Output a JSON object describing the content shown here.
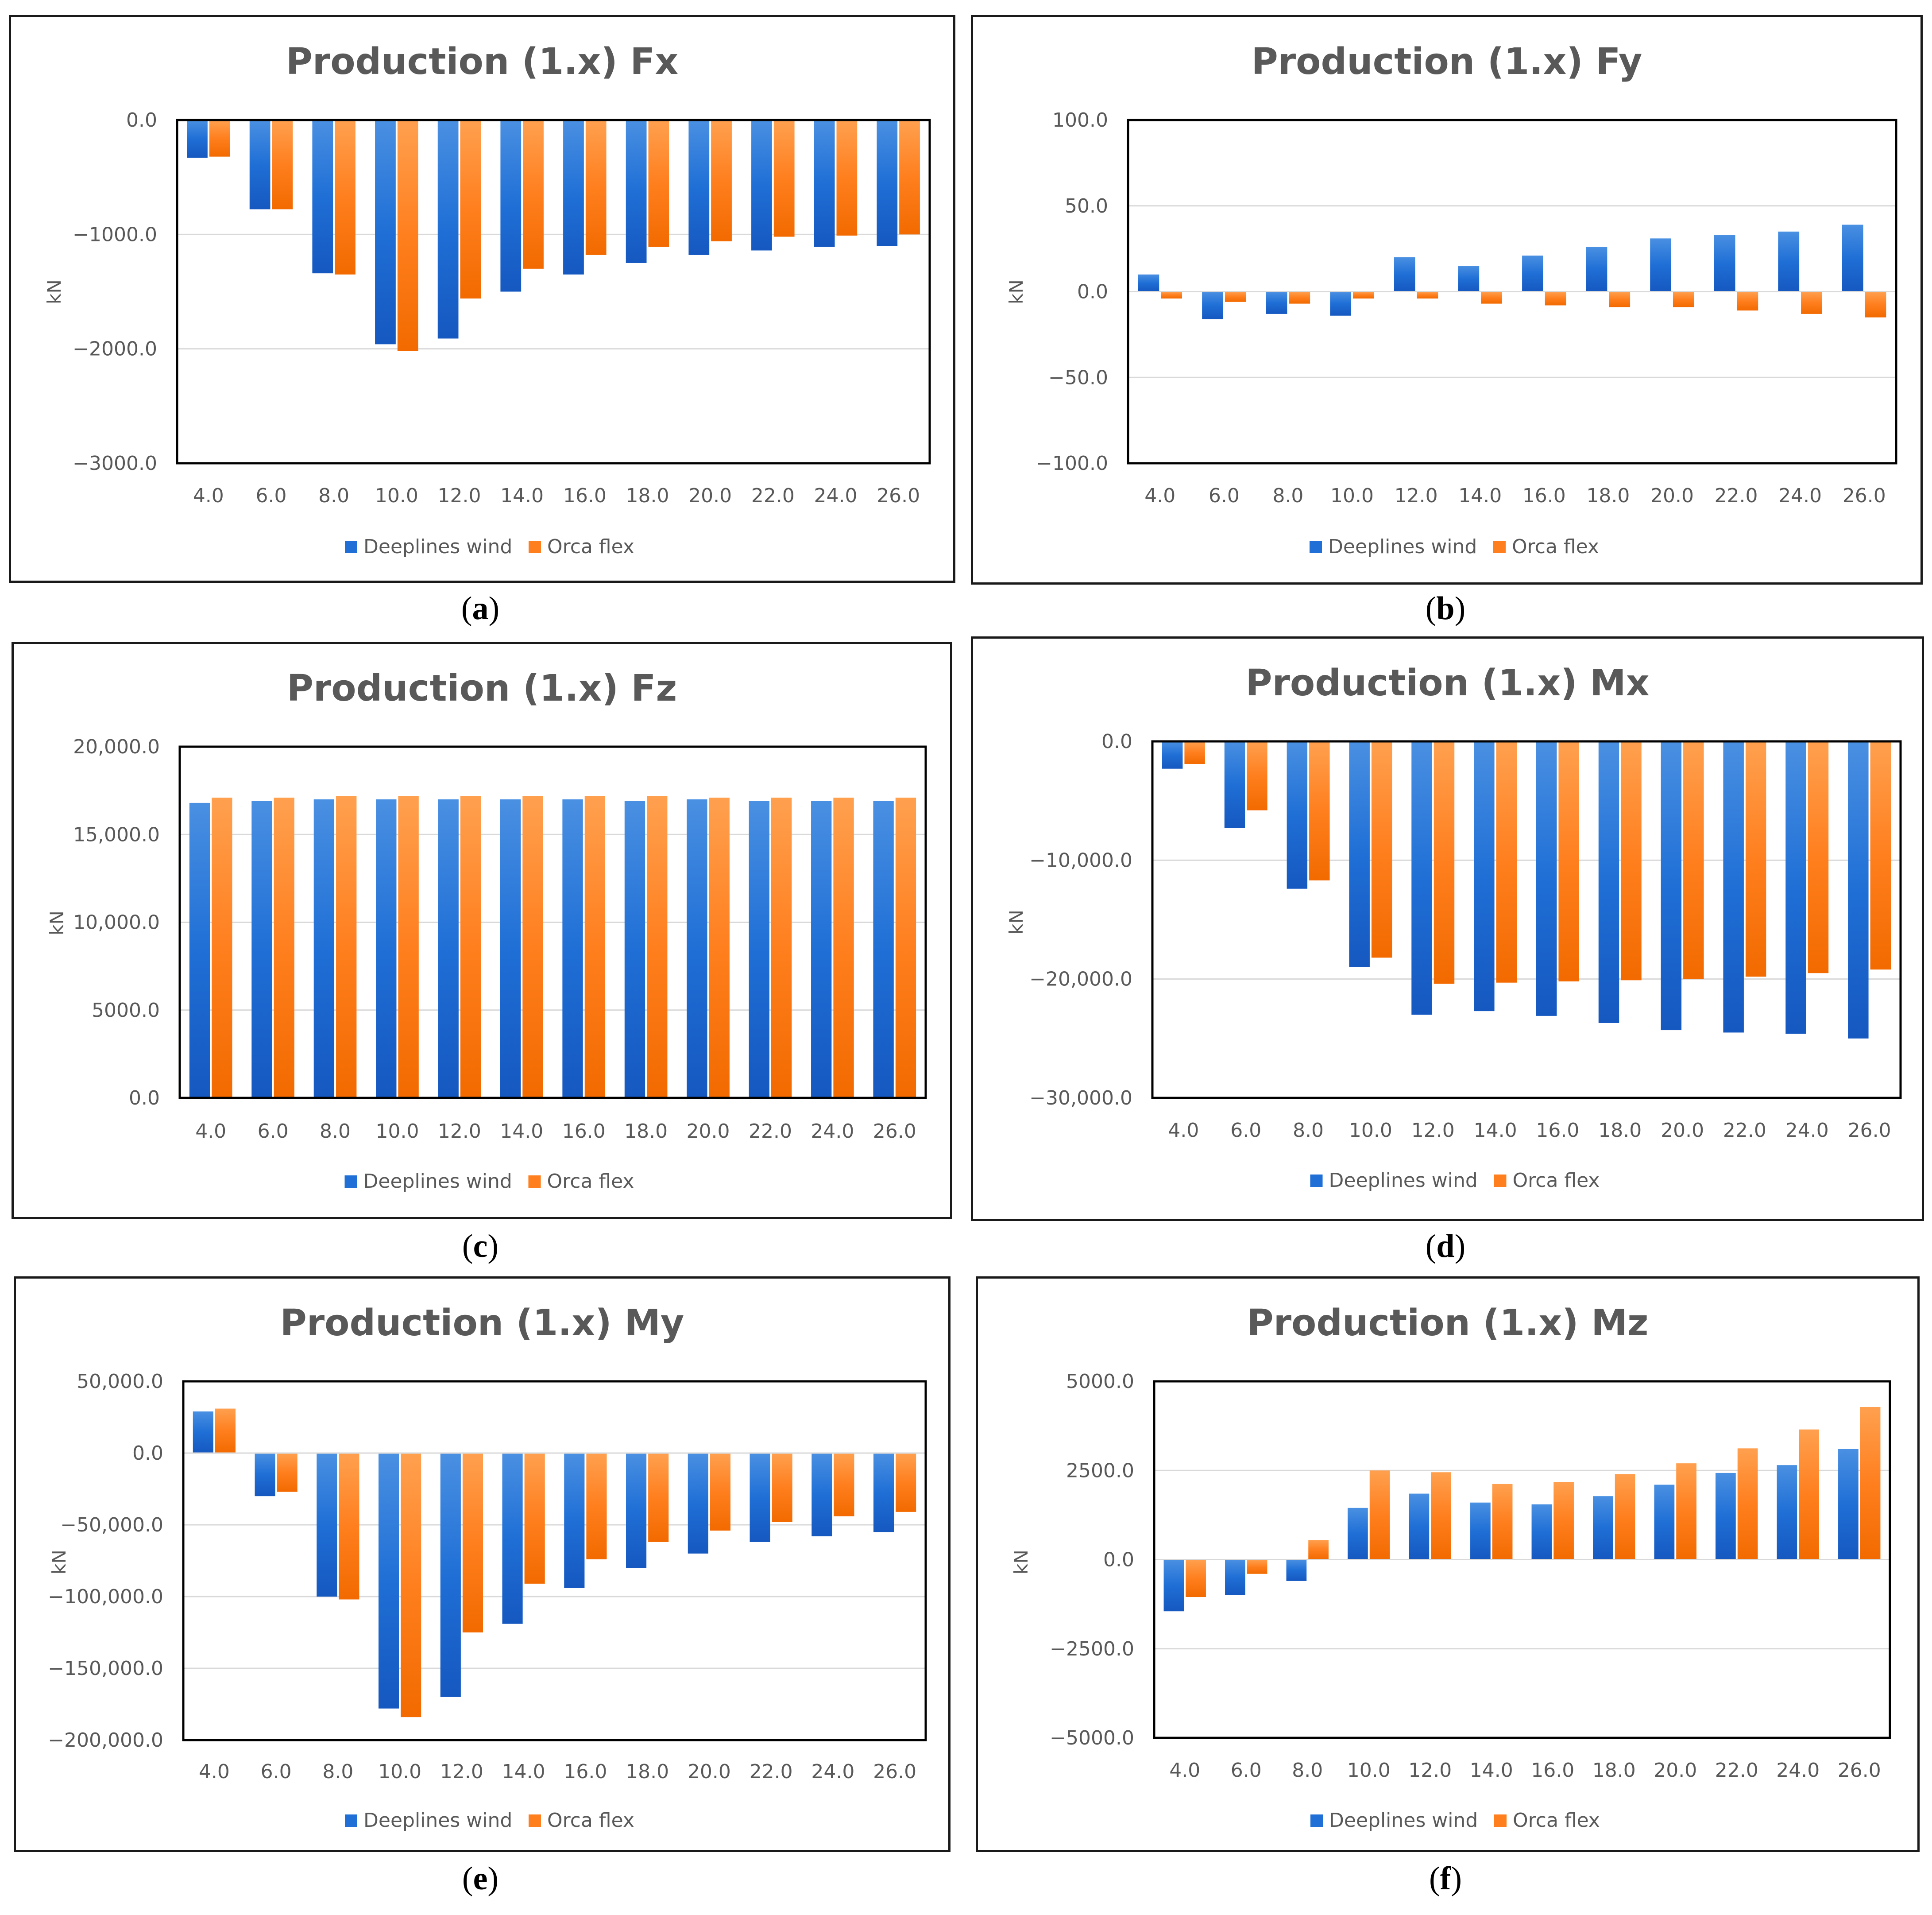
{
  "colors": {
    "deeplines": "#1f6fd6",
    "orcaflex": "#ff7f1e",
    "grid": "#d9d9d9",
    "frame": "#000000",
    "text": "#595959"
  },
  "chart_data": [
    {
      "id": "a",
      "type": "bar",
      "title": "Production (1.x) Fx",
      "caption": "a",
      "xlabel": "",
      "ylabel": "kN",
      "ylim": [
        -3000,
        0
      ],
      "yticks": [
        0,
        -1000,
        -2000,
        -3000
      ],
      "ytick_labels": [
        "0.0",
        "−1000.0",
        "−2000.0",
        "−3000.0"
      ],
      "categories": [
        "4.0",
        "6.0",
        "8.0",
        "10.0",
        "12.0",
        "14.0",
        "16.0",
        "18.0",
        "20.0",
        "22.0",
        "24.0",
        "26.0"
      ],
      "series": [
        {
          "name": "Deeplines wind",
          "values": [
            -330,
            -780,
            -1340,
            -1960,
            -1910,
            -1500,
            -1350,
            -1250,
            -1180,
            -1140,
            -1110,
            -1100
          ]
        },
        {
          "name": "Orca flex",
          "values": [
            -320,
            -780,
            -1350,
            -2020,
            -1560,
            -1300,
            -1180,
            -1110,
            -1060,
            -1020,
            -1010,
            -1000
          ]
        }
      ],
      "legend_position": "bottom"
    },
    {
      "id": "b",
      "type": "bar",
      "title": "Production (1.x) Fy",
      "caption": "b",
      "xlabel": "",
      "ylabel": "kN",
      "ylim": [
        -100,
        100
      ],
      "yticks": [
        100,
        50,
        0,
        -50,
        -100
      ],
      "ytick_labels": [
        "100.0",
        "50.0",
        "0.0",
        "−50.0",
        "−100.0"
      ],
      "categories": [
        "4.0",
        "6.0",
        "8.0",
        "10.0",
        "12.0",
        "14.0",
        "16.0",
        "18.0",
        "20.0",
        "22.0",
        "24.0",
        "26.0"
      ],
      "series": [
        {
          "name": "Deeplines wind",
          "values": [
            10,
            -16,
            -13,
            -14,
            20,
            15,
            21,
            26,
            31,
            33,
            35,
            39
          ]
        },
        {
          "name": "Orca flex",
          "values": [
            -4,
            -6,
            -7,
            -4,
            -4,
            -7,
            -8,
            -9,
            -9,
            -11,
            -13,
            -15
          ]
        }
      ],
      "legend_position": "bottom"
    },
    {
      "id": "c",
      "type": "bar",
      "title": "Production (1.x) Fz",
      "caption": "c",
      "xlabel": "",
      "ylabel": "kN",
      "ylim": [
        0,
        20000
      ],
      "yticks": [
        20000,
        15000,
        10000,
        5000,
        0
      ],
      "ytick_labels": [
        "20,000.0",
        "15,000.0",
        "10,000.0",
        "5000.0",
        "0.0"
      ],
      "categories": [
        "4.0",
        "6.0",
        "8.0",
        "10.0",
        "12.0",
        "14.0",
        "16.0",
        "18.0",
        "20.0",
        "22.0",
        "24.0",
        "26.0"
      ],
      "series": [
        {
          "name": "Deeplines wind",
          "values": [
            16800,
            16900,
            17000,
            17000,
            17000,
            17000,
            17000,
            16900,
            17000,
            16900,
            16900,
            16900
          ]
        },
        {
          "name": "Orca flex",
          "values": [
            17100,
            17100,
            17200,
            17200,
            17200,
            17200,
            17200,
            17200,
            17100,
            17100,
            17100,
            17100
          ]
        }
      ],
      "legend_position": "bottom"
    },
    {
      "id": "d",
      "type": "bar",
      "title": "Production (1.x) Mx",
      "caption": "d",
      "xlabel": "",
      "ylabel": "kN",
      "ylim": [
        -30000,
        0
      ],
      "yticks": [
        0,
        -10000,
        -20000,
        -30000
      ],
      "ytick_labels": [
        "0.0",
        "−10,000.0",
        "−20,000.0",
        "−30,000.0"
      ],
      "categories": [
        "4.0",
        "6.0",
        "8.0",
        "10.0",
        "12.0",
        "14.0",
        "16.0",
        "18.0",
        "20.0",
        "22.0",
        "24.0",
        "26.0"
      ],
      "series": [
        {
          "name": "Deeplines wind",
          "values": [
            -2300,
            -7300,
            -12400,
            -19000,
            -23000,
            -22700,
            -23100,
            -23700,
            -24300,
            -24500,
            -24600,
            -25000
          ]
        },
        {
          "name": "Orca flex",
          "values": [
            -1900,
            -5800,
            -11700,
            -18200,
            -20400,
            -20300,
            -20200,
            -20100,
            -20000,
            -19800,
            -19500,
            -19200
          ]
        }
      ],
      "legend_position": "bottom"
    },
    {
      "id": "e",
      "type": "bar",
      "title": "Production (1.x) My",
      "caption": "e",
      "xlabel": "",
      "ylabel": "kN",
      "ylim": [
        -200000,
        50000
      ],
      "yticks": [
        50000,
        0,
        -50000,
        -100000,
        -150000,
        -200000
      ],
      "ytick_labels": [
        "50,000.0",
        "0.0",
        "−50,000.0",
        "−100,000.0",
        "−150,000.0",
        "−200,000.0"
      ],
      "categories": [
        "4.0",
        "6.0",
        "8.0",
        "10.0",
        "12.0",
        "14.0",
        "16.0",
        "18.0",
        "20.0",
        "22.0",
        "24.0",
        "26.0"
      ],
      "series": [
        {
          "name": "Deeplines wind",
          "values": [
            29000,
            -30000,
            -100000,
            -178000,
            -170000,
            -119000,
            -94000,
            -80000,
            -70000,
            -62000,
            -58000,
            -55000
          ]
        },
        {
          "name": "Orca flex",
          "values": [
            31000,
            -27000,
            -102000,
            -184000,
            -125000,
            -91000,
            -74000,
            -62000,
            -54000,
            -48000,
            -44000,
            -41000
          ]
        }
      ],
      "legend_position": "bottom"
    },
    {
      "id": "f",
      "type": "bar",
      "title": "Production (1.x) Mz",
      "caption": "f",
      "xlabel": "",
      "ylabel": "kN",
      "ylim": [
        -5000,
        5000
      ],
      "yticks": [
        5000,
        2500,
        0,
        -2500,
        -5000
      ],
      "ytick_labels": [
        "5000.0",
        "2500.0",
        "0.0",
        "−2500.0",
        "−5000.0"
      ],
      "categories": [
        "4.0",
        "6.0",
        "8.0",
        "10.0",
        "12.0",
        "14.0",
        "16.0",
        "18.0",
        "20.0",
        "22.0",
        "24.0",
        "26.0"
      ],
      "series": [
        {
          "name": "Deeplines wind",
          "values": [
            -1450,
            -1000,
            -600,
            1450,
            1850,
            1600,
            1550,
            1780,
            2100,
            2430,
            2650,
            3100
          ]
        },
        {
          "name": "Orca flex",
          "values": [
            -1050,
            -400,
            550,
            2500,
            2450,
            2120,
            2180,
            2400,
            2700,
            3120,
            3650,
            4280
          ]
        }
      ],
      "legend_position": "bottom"
    }
  ]
}
